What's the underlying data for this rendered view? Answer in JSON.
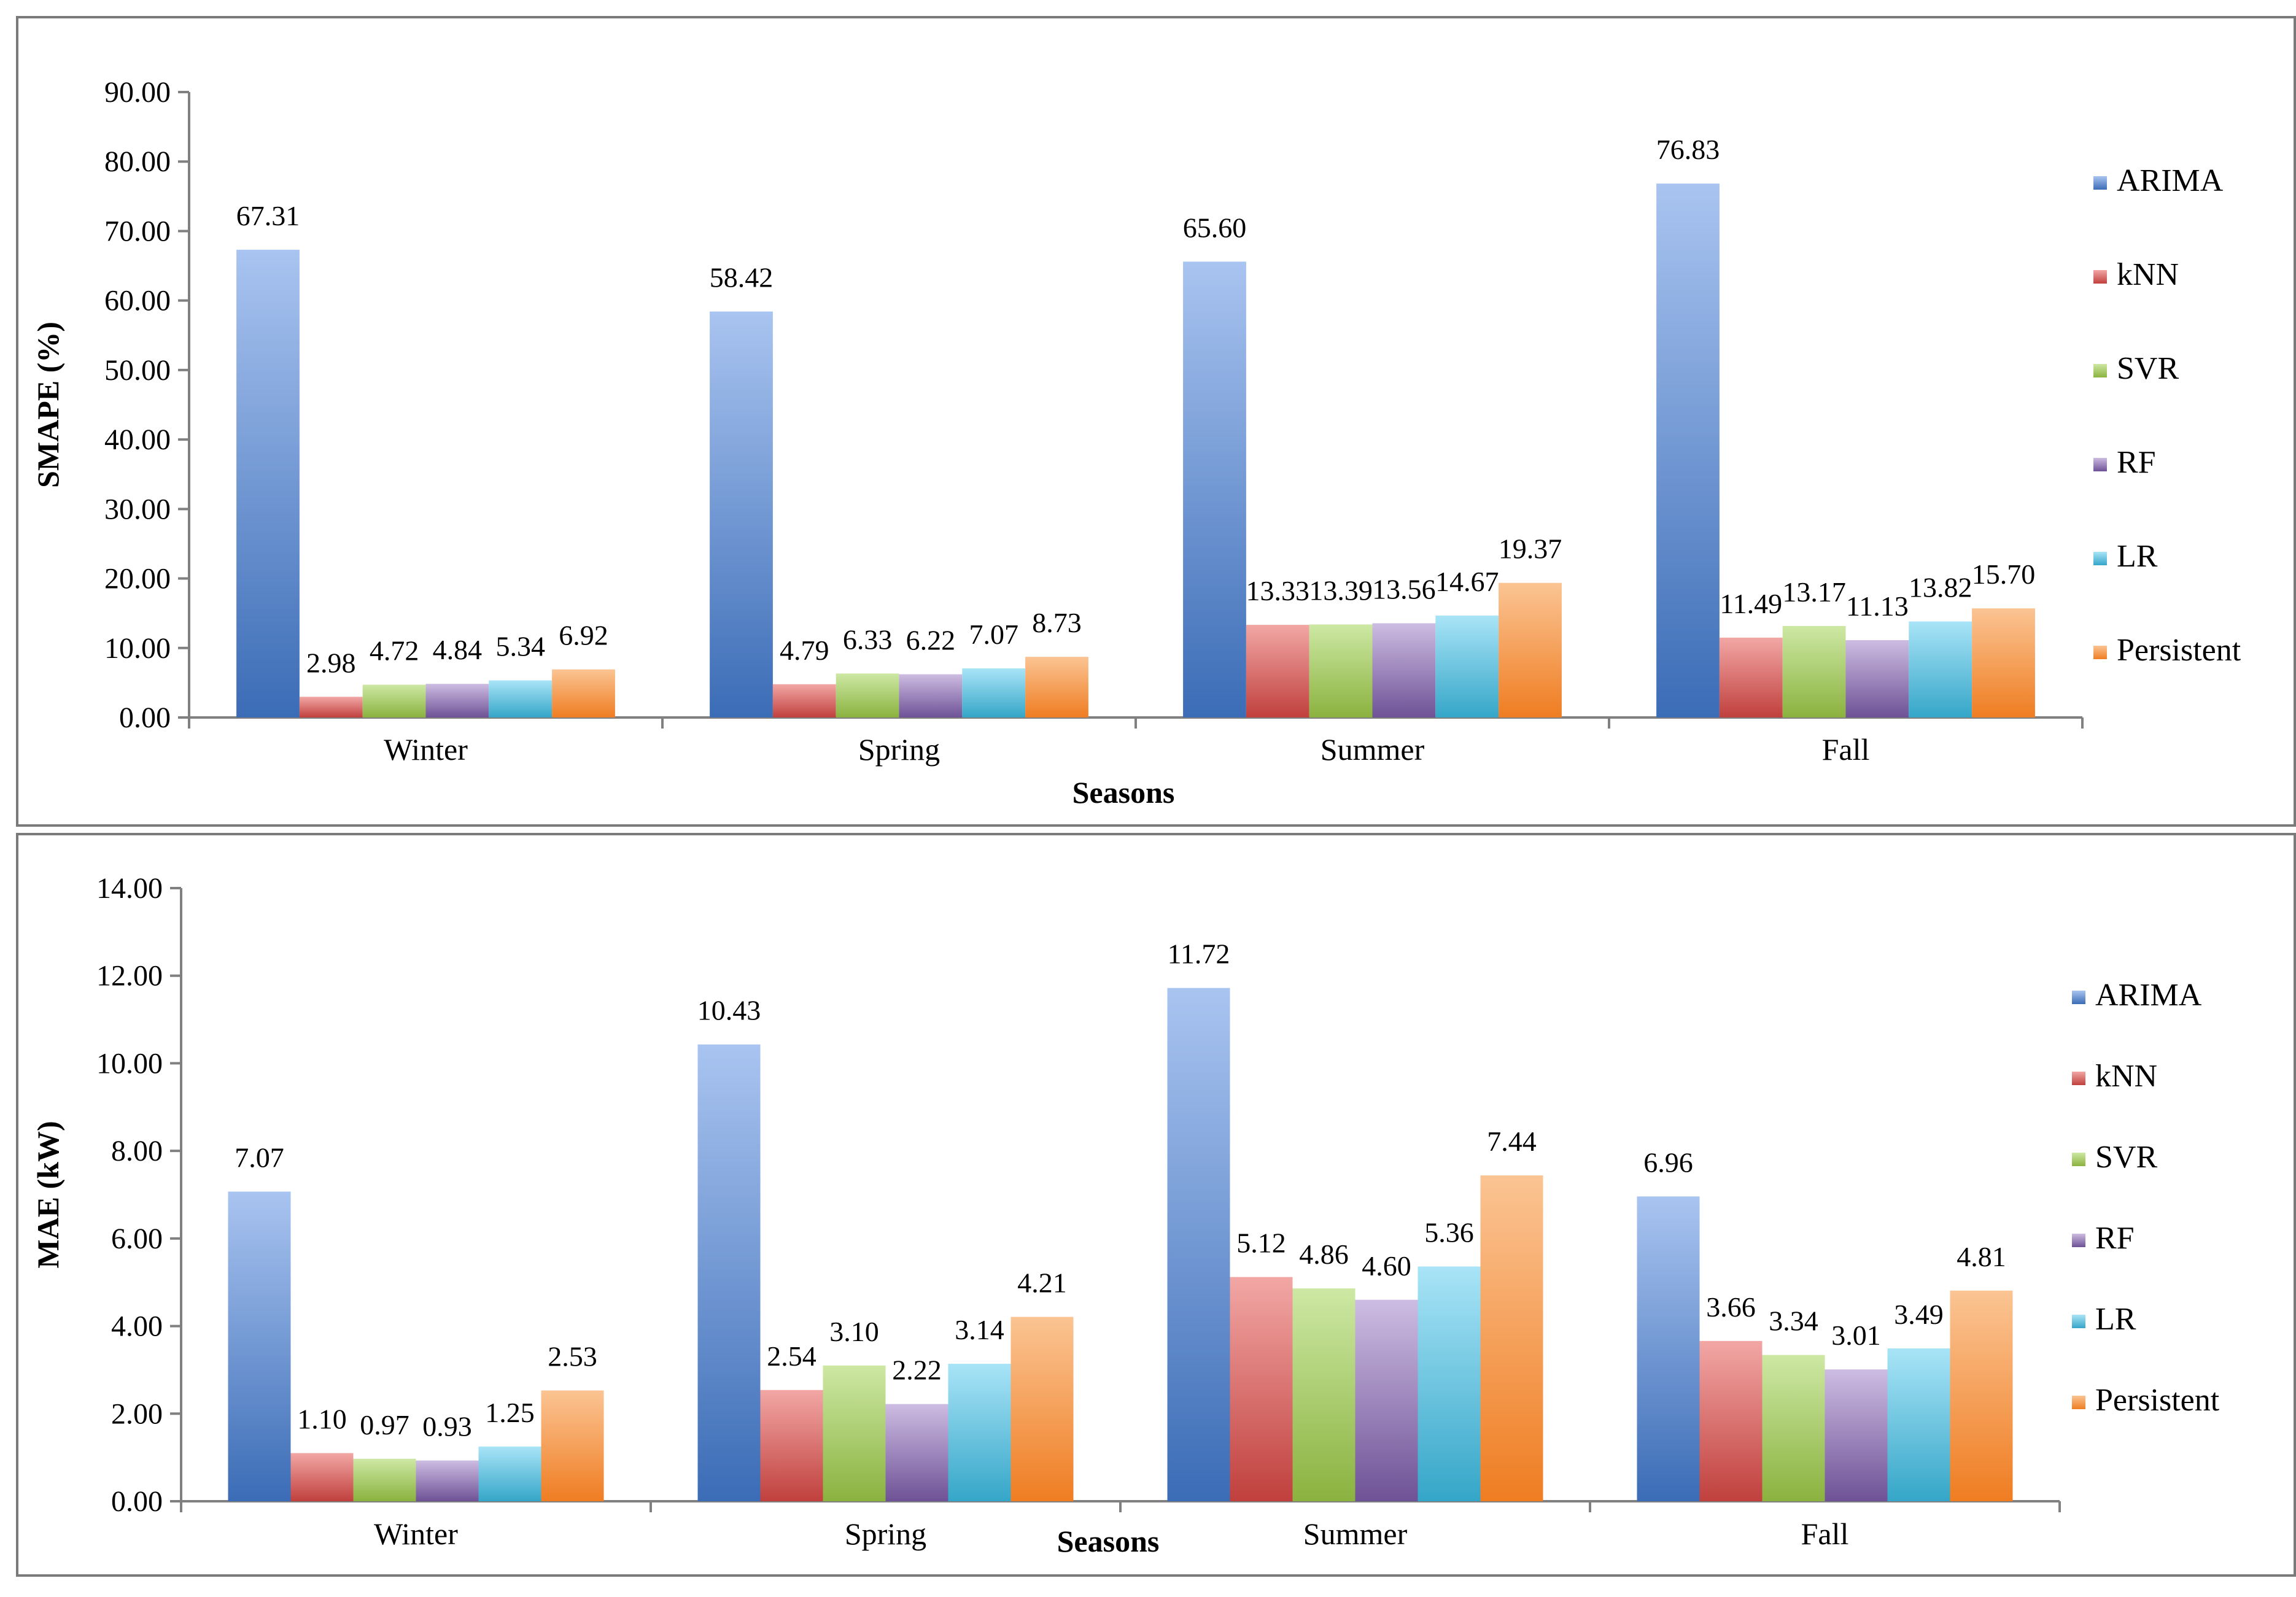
{
  "chart_data": [
    {
      "type": "bar",
      "title": "",
      "xlabel": "Seasons",
      "ylabel": "SMAPE (%)",
      "ylim": [
        0,
        90
      ],
      "yticks": [
        "0.00",
        "10.00",
        "20.00",
        "30.00",
        "40.00",
        "50.00",
        "60.00",
        "70.00",
        "80.00",
        "90.00"
      ],
      "legend_position": "right",
      "grid": false,
      "categories": [
        "Winter",
        "Spring",
        "Summer",
        "Fall"
      ],
      "series": [
        {
          "name": "ARIMA",
          "values": [
            67.31,
            58.42,
            65.6,
            76.83
          ],
          "labels": [
            "67.31",
            "58.42",
            "65.60",
            "76.83"
          ]
        },
        {
          "name": "kNN",
          "values": [
            2.98,
            4.79,
            13.33,
            11.49
          ],
          "labels": [
            "2.98",
            "4.79",
            "13.33",
            "11.49"
          ]
        },
        {
          "name": "SVR",
          "values": [
            4.72,
            6.33,
            13.39,
            13.17
          ],
          "labels": [
            "4.72",
            "6.33",
            "13.39",
            "13.17"
          ]
        },
        {
          "name": "RF",
          "values": [
            4.84,
            6.22,
            13.56,
            11.13
          ],
          "labels": [
            "4.84",
            "6.22",
            "13.56",
            "11.13"
          ]
        },
        {
          "name": "LR",
          "values": [
            5.34,
            7.07,
            14.67,
            13.82
          ],
          "labels": [
            "5.34",
            "7.07",
            "14.67",
            "13.82"
          ]
        },
        {
          "name": "Persistent",
          "values": [
            6.92,
            8.73,
            19.37,
            15.7
          ],
          "labels": [
            "6.92",
            "8.73",
            "19.37",
            "15.70"
          ]
        }
      ]
    },
    {
      "type": "bar",
      "title": "",
      "xlabel": "Seasons",
      "ylabel": "MAE (kW)",
      "ylim": [
        0,
        14
      ],
      "yticks": [
        "0.00",
        "2.00",
        "4.00",
        "6.00",
        "8.00",
        "10.00",
        "12.00",
        "14.00"
      ],
      "legend_position": "right",
      "grid": false,
      "categories": [
        "Winter",
        "Spring",
        "Summer",
        "Fall"
      ],
      "series": [
        {
          "name": "ARIMA",
          "values": [
            7.07,
            10.43,
            11.72,
            6.96
          ],
          "labels": [
            "7.07",
            "10.43",
            "11.72",
            "6.96"
          ]
        },
        {
          "name": "kNN",
          "values": [
            1.1,
            2.54,
            5.12,
            3.66
          ],
          "labels": [
            "1.10",
            "2.54",
            "5.12",
            "3.66"
          ]
        },
        {
          "name": "SVR",
          "values": [
            0.97,
            3.1,
            4.86,
            3.34
          ],
          "labels": [
            "0.97",
            "3.10",
            "4.86",
            "3.34"
          ]
        },
        {
          "name": "RF",
          "values": [
            0.93,
            2.22,
            4.6,
            3.01
          ],
          "labels": [
            "0.93",
            "2.22",
            "4.60",
            "3.01"
          ]
        },
        {
          "name": "LR",
          "values": [
            1.25,
            3.14,
            5.36,
            3.49
          ],
          "labels": [
            "1.25",
            "3.14",
            "5.36",
            "3.49"
          ]
        },
        {
          "name": "Persistent",
          "values": [
            2.53,
            4.21,
            7.44,
            4.81
          ],
          "labels": [
            "2.53",
            "4.21",
            "7.44",
            "4.81"
          ]
        }
      ]
    }
  ],
  "colors": {
    "ARIMA": {
      "top": "#a9c4f0",
      "bottom": "#3b6cb6"
    },
    "kNN": {
      "top": "#f2a7a5",
      "bottom": "#c0403d"
    },
    "SVR": {
      "top": "#cde8a4",
      "bottom": "#8bb23f"
    },
    "RF": {
      "top": "#cdbce2",
      "bottom": "#6e5296"
    },
    "LR": {
      "top": "#a9e4f7",
      "bottom": "#35a6c8"
    },
    "Persistent": {
      "top": "#fbc493",
      "bottom": "#ef7d22"
    }
  }
}
